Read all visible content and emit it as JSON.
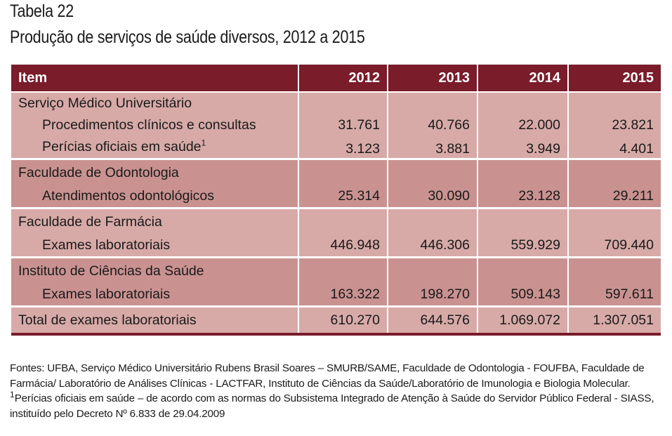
{
  "heading": {
    "label": "Tabela 22",
    "title": "Produção de serviços de saúde diversos, 2012 a 2015"
  },
  "table": {
    "headers": [
      "Item",
      "2012",
      "2013",
      "2014",
      "2015"
    ],
    "groups": [
      {
        "name": "Serviço Médico Universitário",
        "rows": [
          {
            "label": "Procedimentos clínicos e consultas",
            "values": [
              "31.761",
              "40.766",
              "22.000",
              "23.821"
            ]
          },
          {
            "label": "Perícias oficiais em saúde",
            "footnote": "1",
            "values": [
              "3.123",
              "3.881",
              "3.949",
              "4.401"
            ]
          }
        ]
      },
      {
        "name": "Faculdade de Odontologia",
        "rows": [
          {
            "label": "Atendimentos odontológicos",
            "values": [
              "25.314",
              "30.090",
              "23.128",
              "29.211"
            ]
          }
        ]
      },
      {
        "name": "Faculdade de Farmácia",
        "rows": [
          {
            "label": "Exames laboratoriais",
            "values": [
              "446.948",
              "446.306",
              "559.929",
              "709.440"
            ]
          }
        ]
      },
      {
        "name": "Instituto de Ciências da Saúde",
        "rows": [
          {
            "label": "Exames laboratoriais",
            "values": [
              "163.322",
              "198.270",
              "509.143",
              "597.611"
            ]
          }
        ]
      }
    ],
    "total": {
      "label": "Total de exames laboratoriais",
      "values": [
        "610.270",
        "644.576",
        "1.069.072",
        "1.307.051"
      ]
    }
  },
  "notes": {
    "sources": "Fontes: UFBA, Serviço Médico Universitário Rubens Brasil Soares – SMURB/SAME, Faculdade de Odontologia - FOUFBA, Faculdade de Farmácia/ Laboratório de Análises Clínicas - LACTFAR, Instituto de Ciências da Saúde/Laboratório de Imunologia e Biologia Molecular.",
    "footnote_mark": "1",
    "footnote": "Perícias oficiais em saúde – de acordo com as normas do Subsistema Integrado de Atenção à Saúde do Servidor Público Federal - SIASS, instituído pelo Decreto Nº 6.833 de 29.04.2009"
  },
  "colors": {
    "header_bg": "#7a1c2a",
    "row_light": "#d7aaa7",
    "row_dark": "#c99290"
  }
}
